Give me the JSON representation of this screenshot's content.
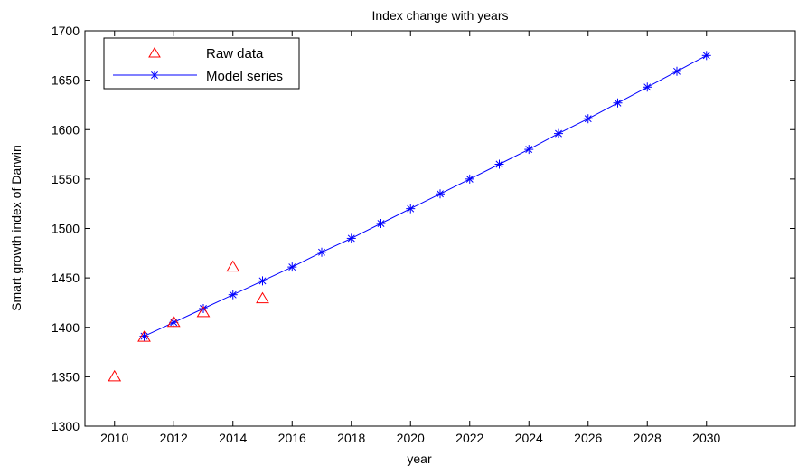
{
  "chart_data": {
    "type": "line",
    "title": "Index change with years",
    "xlabel": "year",
    "ylabel": "Smart growth index of Darwin",
    "xlim": [
      2009,
      2033
    ],
    "ylim": [
      1300,
      1700
    ],
    "xticks": [
      2010,
      2012,
      2014,
      2016,
      2018,
      2020,
      2022,
      2024,
      2026,
      2028,
      2030
    ],
    "yticks": [
      1300,
      1350,
      1400,
      1450,
      1500,
      1550,
      1600,
      1650,
      1700
    ],
    "grid": false,
    "legend_position": "top-left",
    "series": [
      {
        "name": "Raw data",
        "marker": "triangle",
        "line": false,
        "color": "#ff0000",
        "x": [
          2010,
          2011,
          2012,
          2013,
          2014,
          2015
        ],
        "y": [
          1350,
          1390,
          1405,
          1415,
          1461,
          1429
        ]
      },
      {
        "name": "Model series",
        "marker": "star",
        "line": true,
        "color": "#0000ff",
        "x": [
          2011,
          2012,
          2013,
          2014,
          2015,
          2016,
          2017,
          2018,
          2019,
          2020,
          2021,
          2022,
          2023,
          2024,
          2025,
          2026,
          2027,
          2028,
          2029,
          2030
        ],
        "y": [
          1391,
          1405,
          1419,
          1433,
          1447,
          1461,
          1476,
          1490,
          1505,
          1520,
          1535,
          1550,
          1565,
          1580,
          1596,
          1611,
          1627,
          1643,
          1659,
          1675
        ]
      }
    ]
  }
}
